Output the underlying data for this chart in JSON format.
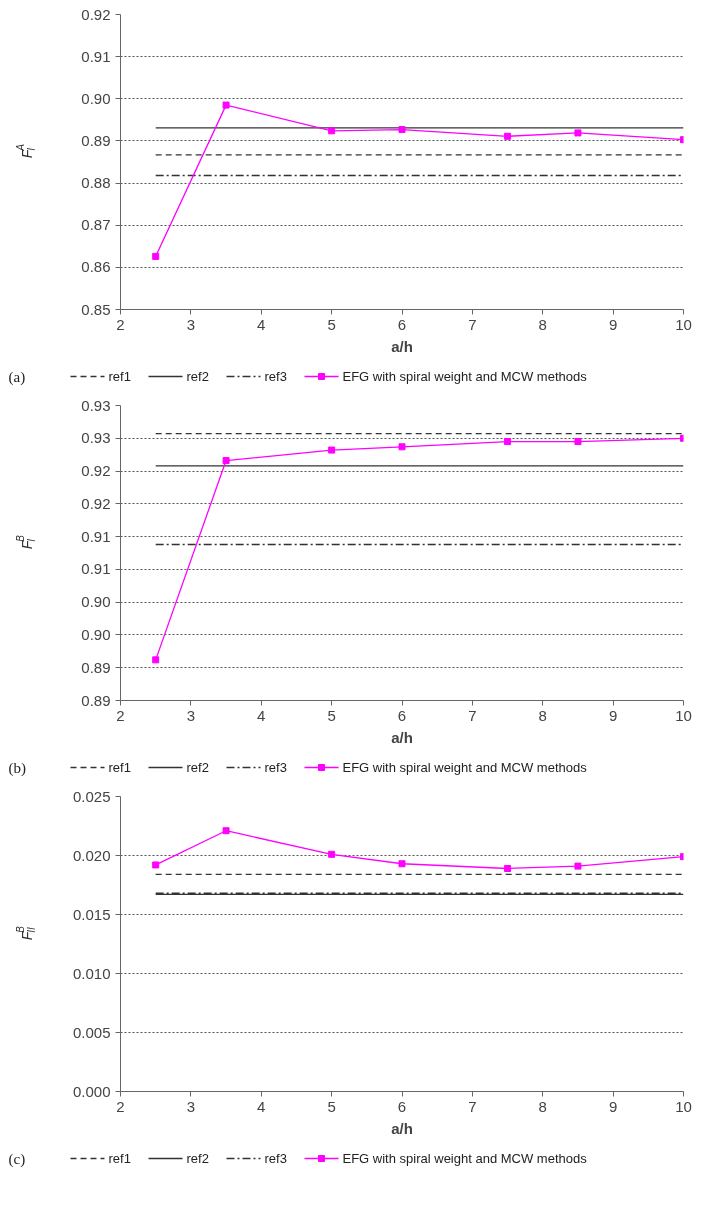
{
  "chart_data": [
    {
      "type": "line",
      "xlabel": "a/h",
      "ylabel": "F$^{A}$$_{I}$",
      "annotations": [
        "(a)"
      ],
      "xlim": [
        2,
        10
      ],
      "xticks": [
        2,
        3,
        4,
        5,
        6,
        7,
        8,
        9,
        10
      ],
      "ylim": [
        0.85,
        0.92
      ],
      "yticks": [
        0.85,
        0.86,
        0.87,
        0.88,
        0.89,
        {
          "value": 0.9,
          "label": "0.90"
        },
        0.91,
        0.92
      ],
      "grid": "y",
      "legend": "bottom",
      "series": [
        {
          "name": "ref1",
          "color": "#333333",
          "line_style": "dashed",
          "marker": "none",
          "x": [
            2.5,
            10
          ],
          "values": [
            0.8867,
            0.8867
          ]
        },
        {
          "name": "ref2",
          "color": "#333333",
          "line_style": "solid",
          "marker": "none",
          "x": [
            2.5,
            10
          ],
          "values": [
            0.8931,
            0.8931
          ]
        },
        {
          "name": "ref3",
          "color": "#333333",
          "line_style": "dashdot",
          "marker": "none",
          "x": [
            2.5,
            10
          ],
          "values": [
            0.8818,
            0.8818
          ]
        },
        {
          "name": "EFG with spiral weight and MCW methods",
          "color": "#ff00ff",
          "line_style": "solid",
          "marker": "square",
          "x": [
            2.5,
            3.5,
            5,
            6,
            7.5,
            8.5,
            10
          ],
          "values": [
            0.8626,
            0.8985,
            0.8924,
            0.8927,
            0.8911,
            0.8919,
            0.8903
          ]
        }
      ]
    },
    {
      "type": "line",
      "xlabel": "a/h",
      "ylabel": "F$^{B}$$_{I}$",
      "annotations": [
        "(b)"
      ],
      "xlim": [
        2,
        10
      ],
      "xticks": [
        2,
        3,
        4,
        5,
        6,
        7,
        8,
        9,
        10
      ],
      "ylim": [
        0.885,
        0.93
      ],
      "yticks": [
        {
          "value": 0.885,
          "label": "0.89"
        },
        0.89,
        {
          "value": 0.895,
          "label": "0.90"
        },
        {
          "value": 0.9,
          "label": "0.90"
        },
        {
          "value": 0.905,
          "label": "0.91"
        },
        0.91,
        {
          "value": 0.915,
          "label": "0.92"
        },
        0.92,
        {
          "value": 0.925,
          "label": "0.93"
        },
        0.93
      ],
      "grid": "y",
      "legend": "bottom",
      "series": [
        {
          "name": "ref1",
          "color": "#333333",
          "line_style": "dashed",
          "marker": "none",
          "x": [
            2.5,
            10
          ],
          "values": [
            0.9257,
            0.9257
          ]
        },
        {
          "name": "ref2",
          "color": "#333333",
          "line_style": "solid",
          "marker": "none",
          "x": [
            2.5,
            10
          ],
          "values": [
            0.9208,
            0.9208
          ]
        },
        {
          "name": "ref3",
          "color": "#333333",
          "line_style": "dashdot",
          "marker": "none",
          "x": [
            2.5,
            10
          ],
          "values": [
            0.9088,
            0.9088
          ]
        },
        {
          "name": "EFG with spiral weight and MCW methods",
          "color": "#ff00ff",
          "line_style": "solid",
          "marker": "square",
          "x": [
            2.5,
            3.5,
            5,
            6,
            7.5,
            8.5,
            10
          ],
          "values": [
            0.8912,
            0.9216,
            0.9232,
            0.9237,
            0.9245,
            0.9245,
            0.925
          ]
        }
      ]
    },
    {
      "type": "line",
      "xlabel": "a/h",
      "ylabel": "F$^{B}$$_{II}$",
      "annotations": [
        "(c)"
      ],
      "xlim": [
        2,
        10
      ],
      "xticks": [
        2,
        3,
        4,
        5,
        6,
        7,
        8,
        9,
        10
      ],
      "ylim": [
        0,
        0.025
      ],
      "yticks": [
        {
          "value": 0,
          "label": "0.000"
        },
        0.005,
        {
          "value": 0.01,
          "label": "0.010"
        },
        0.015,
        {
          "value": 0.02,
          "label": "0.020"
        },
        0.025
      ],
      "grid": "y",
      "legend": "bottom",
      "series": [
        {
          "name": "ref1",
          "color": "#333333",
          "line_style": "dashed",
          "marker": "none",
          "x": [
            2.5,
            10
          ],
          "values": [
            0.0184,
            0.0184
          ]
        },
        {
          "name": "ref2",
          "color": "#333333",
          "line_style": "solid",
          "marker": "none",
          "x": [
            2.5,
            10
          ],
          "values": [
            0.0167,
            0.0167
          ]
        },
        {
          "name": "ref3",
          "color": "#333333",
          "line_style": "dashdot",
          "marker": "none",
          "x": [
            2.5,
            10
          ],
          "values": [
            0.0168,
            0.0168
          ]
        },
        {
          "name": "EFG with spiral weight and MCW methods",
          "color": "#ff00ff",
          "line_style": "solid",
          "marker": "square",
          "x": [
            2.5,
            3.5,
            5,
            6,
            7.5,
            8.5,
            10
          ],
          "values": [
            0.0192,
            0.0221,
            0.0201,
            0.0193,
            0.0189,
            0.0191,
            0.0199
          ]
        }
      ]
    }
  ]
}
